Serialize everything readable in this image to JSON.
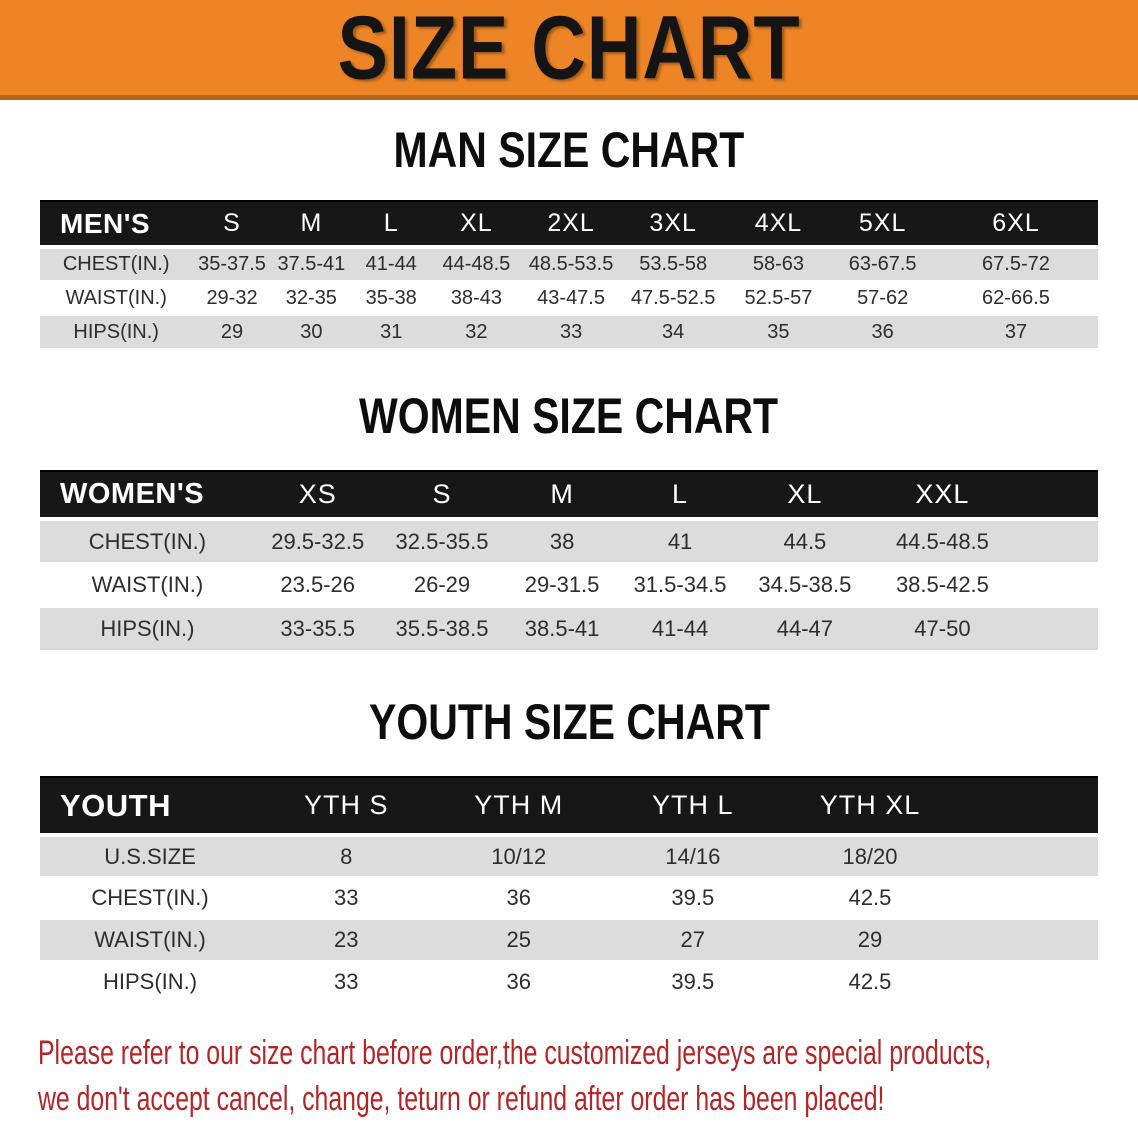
{
  "banner": {
    "title": "SIZE CHART"
  },
  "colors": {
    "banner_bg": "#ED8527",
    "banner_edge": "#B2661E",
    "banner_text": "#141414",
    "header_bar_bg": "#171717",
    "header_bar_text": "#FFFFFF",
    "row_gray": "#DCDCDC",
    "row_white": "#FEFEFE",
    "note_red": "#B22628"
  },
  "sections": [
    {
      "id": "men",
      "heading": "MAN SIZE CHART",
      "table": {
        "label_header": "MEN'S",
        "size_headers": [
          "S",
          "M",
          "L",
          "XL",
          "2XL",
          "3XL",
          "4XL",
          "5XL",
          "6XL"
        ],
        "rows": [
          {
            "label": "CHEST(IN.)",
            "values": [
              "35-37.5",
              "37.5-41",
              "41-44",
              "44-48.5",
              "48.5-53.5",
              "53.5-58",
              "58-63",
              "63-67.5",
              "67.5-72"
            ]
          },
          {
            "label": "WAIST(IN.)",
            "values": [
              "29-32",
              "32-35",
              "35-38",
              "38-43",
              "43-47.5",
              "47.5-52.5",
              "52.5-57",
              "57-62",
              "62-66.5"
            ]
          },
          {
            "label": "HIPS(IN.)",
            "values": [
              "29",
              "30",
              "31",
              "32",
              "33",
              "34",
              "35",
              "36",
              "37"
            ]
          }
        ]
      }
    },
    {
      "id": "women",
      "heading": "WOMEN SIZE CHART",
      "table": {
        "label_header": "WOMEN'S",
        "size_headers": [
          "XS",
          "S",
          "M",
          "L",
          "XL",
          "XXL"
        ],
        "rows": [
          {
            "label": "CHEST(IN.)",
            "values": [
              "29.5-32.5",
              "32.5-35.5",
              "38",
              "41",
              "44.5",
              "44.5-48.5"
            ]
          },
          {
            "label": "WAIST(IN.)",
            "values": [
              "23.5-26",
              "26-29",
              "29-31.5",
              "31.5-34.5",
              "34.5-38.5",
              "38.5-42.5"
            ]
          },
          {
            "label": "HIPS(IN.)",
            "values": [
              "33-35.5",
              "35.5-38.5",
              "38.5-41",
              "41-44",
              "44-47",
              "47-50"
            ]
          }
        ]
      }
    },
    {
      "id": "youth",
      "heading": "YOUTH SIZE CHART",
      "table": {
        "label_header": "YOUTH",
        "size_headers": [
          "YTH S",
          "YTH M",
          "YTH L",
          "YTH XL"
        ],
        "rows": [
          {
            "label": "U.S.SIZE",
            "values": [
              "8",
              "10/12",
              "14/16",
              "18/20"
            ]
          },
          {
            "label": "CHEST(IN.)",
            "values": [
              "33",
              "36",
              "39.5",
              "42.5"
            ]
          },
          {
            "label": "WAIST(IN.)",
            "values": [
              "23",
              "25",
              "27",
              "29"
            ]
          },
          {
            "label": "HIPS(IN.)",
            "values": [
              "33",
              "36",
              "39.5",
              "42.5"
            ]
          }
        ]
      }
    }
  ],
  "note": {
    "lines": [
      "Please refer to our size chart before order,the customized jerseys are special products,",
      "we don't accept cancel, change, teturn or refund after order has been placed!"
    ]
  }
}
